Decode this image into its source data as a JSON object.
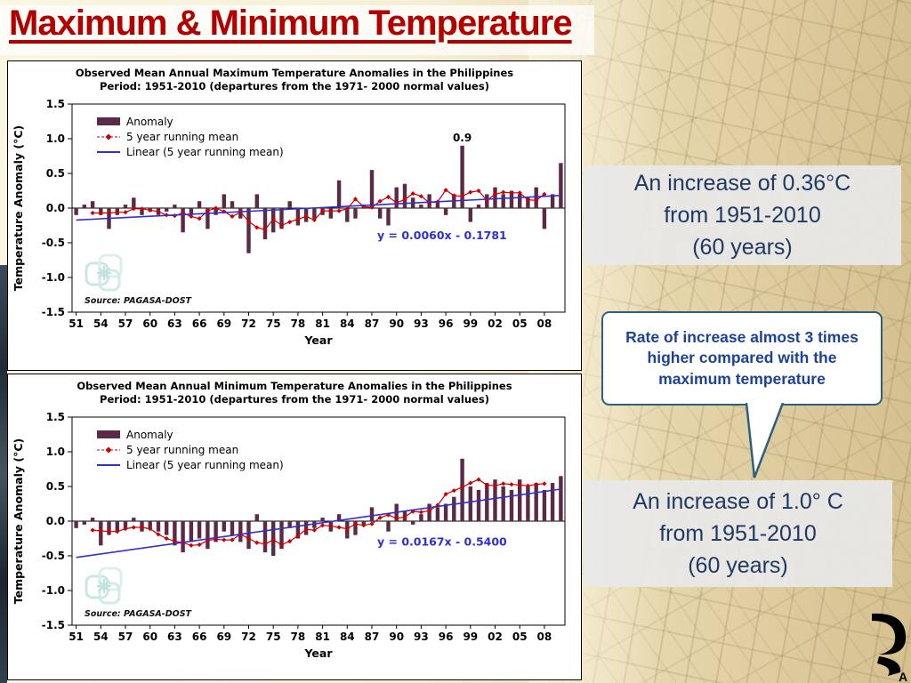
{
  "slide": {
    "title": "Maximum & Minimum Temperature"
  },
  "boxes": {
    "max_increase": {
      "line1": "An increase of 0.36°C",
      "line2": "from 1951-2010",
      "line3": "(60 years)"
    },
    "rate_note": {
      "text": "Rate of increase almost 3 times higher compared with the maximum temperature"
    },
    "min_increase": {
      "line1": "An increase of 1.0° C",
      "line2": "from 1951-2010",
      "line3": "(60 years)"
    }
  },
  "logo": {
    "letter": "A"
  },
  "chart_data": [
    {
      "type": "bar",
      "title_line1": "Observed Mean Annual  Maximum Temperature Anomalies in the Philippines",
      "title_line2": "Period: 1951-2010 (departures from the 1971- 2000 normal values)",
      "xlabel": "Year",
      "ylabel": "Temperature Anomaly (°C)",
      "ylim": [
        -1.5,
        1.5
      ],
      "ytick_step": 0.5,
      "start_year": 1951,
      "end_year": 2010,
      "xtick_labels": [
        "51",
        "54",
        "57",
        "60",
        "63",
        "66",
        "69",
        "72",
        "75",
        "78",
        "81",
        "84",
        "87",
        "90",
        "93",
        "96",
        "99",
        "02",
        "05",
        "08"
      ],
      "grid": false,
      "legend_position": "top-left",
      "series": [
        {
          "name": "Anomaly",
          "type": "bar",
          "color": "#5a2a46",
          "values": [
            -0.1,
            0.05,
            0.1,
            -0.1,
            -0.3,
            -0.1,
            0.05,
            0.15,
            -0.1,
            -0.05,
            -0.1,
            -0.05,
            0.05,
            -0.35,
            -0.1,
            0.1,
            -0.3,
            -0.1,
            0.2,
            0.1,
            -0.15,
            -0.65,
            0.2,
            -0.45,
            -0.35,
            -0.3,
            0.1,
            -0.25,
            -0.2,
            -0.15,
            -0.1,
            -0.15,
            0.4,
            -0.2,
            -0.15,
            0.05,
            0.55,
            -0.15,
            -0.25,
            0.3,
            0.35,
            0.15,
            0.05,
            0.2,
            0.1,
            -0.1,
            0.2,
            0.9,
            -0.2,
            0.05,
            0.2,
            0.3,
            0.2,
            0.25,
            0.2,
            0.15,
            0.3,
            -0.3,
            0.2,
            0.65
          ]
        },
        {
          "name": "5 year running mean",
          "type": "line",
          "color": "#cc0000",
          "derived_from": "5-year centered running mean of Anomaly"
        },
        {
          "name": "Linear (5 year running mean)",
          "type": "linear-trend",
          "color": "#2f2fd3",
          "slope": 0.006,
          "intercept": -0.1781
        }
      ],
      "equation": "y = 0.0060x  - 0.1781",
      "equation_y": -0.45,
      "annotation": {
        "label": "0.9",
        "year": 1998
      },
      "source": "Source: PAGASA-DOST"
    },
    {
      "type": "bar",
      "title_line1": "Observed Mean  Annual  Minimum  Temperature Anomalies in the Philippines",
      "title_line2": "Period: 1951-2010 (departures from the 1971- 2000 normal values)",
      "xlabel": "Year",
      "ylabel": "Temperature Anomaly (°C)",
      "ylim": [
        -1.5,
        1.5
      ],
      "ytick_step": 0.5,
      "start_year": 1951,
      "end_year": 2010,
      "xtick_labels": [
        "51",
        "54",
        "57",
        "60",
        "63",
        "66",
        "69",
        "72",
        "75",
        "78",
        "81",
        "84",
        "87",
        "90",
        "93",
        "96",
        "99",
        "02",
        "05",
        "08"
      ],
      "grid": false,
      "legend_position": "top-left",
      "series": [
        {
          "name": "Anomaly",
          "type": "bar",
          "color": "#5a2a46",
          "values": [
            -0.1,
            -0.05,
            0.05,
            -0.35,
            -0.2,
            -0.15,
            -0.1,
            0.05,
            -0.15,
            -0.1,
            -0.15,
            -0.2,
            -0.35,
            -0.45,
            -0.3,
            -0.25,
            -0.4,
            -0.3,
            -0.15,
            -0.2,
            -0.3,
            -0.4,
            0.1,
            -0.45,
            -0.5,
            -0.4,
            -0.1,
            -0.25,
            -0.2,
            -0.1,
            0.05,
            -0.15,
            0.1,
            -0.25,
            -0.2,
            -0.05,
            0.2,
            0.0,
            -0.15,
            0.25,
            0.15,
            -0.05,
            0.1,
            0.25,
            0.2,
            0.25,
            0.35,
            0.9,
            0.5,
            0.45,
            0.55,
            0.6,
            0.5,
            0.45,
            0.6,
            0.5,
            0.55,
            0.45,
            0.55,
            0.65
          ]
        },
        {
          "name": "5 year running mean",
          "type": "line",
          "color": "#cc0000",
          "derived_from": "5-year centered running mean of Anomaly"
        },
        {
          "name": "Linear (5 year running mean)",
          "type": "linear-trend",
          "color": "#2f2fd3",
          "slope": 0.0167,
          "intercept": -0.54
        }
      ],
      "equation": "y = 0.0167x  - 0.5400",
      "equation_y": -0.35,
      "source": "Source: PAGASA-DOST"
    }
  ]
}
